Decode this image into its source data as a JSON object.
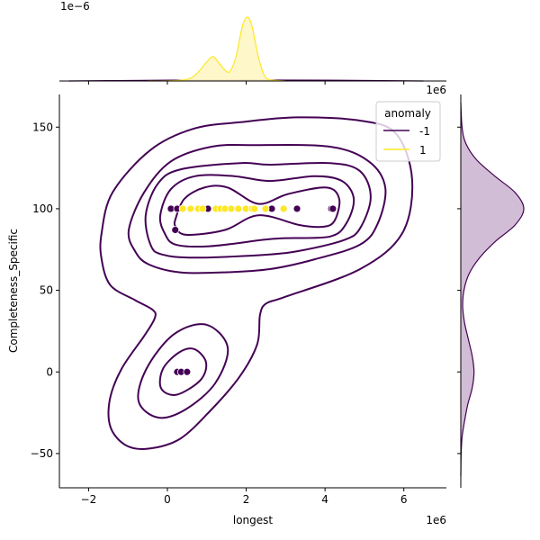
{
  "chart_data": {
    "type": "scatter",
    "subtype": "jointplot with kde contours and marginal kde",
    "xlabel": "longest",
    "ylabel": "Completeness_Specific",
    "x_offset_label": "1e6",
    "top_marginal_offset_label": "1e−6",
    "xlim": [
      -2.74,
      7.08
    ],
    "ylim": [
      -71,
      170
    ],
    "x_ticks": [
      -2,
      0,
      2,
      4,
      6
    ],
    "x_tick_labels": [
      "−2",
      "0",
      "2",
      "4",
      "6"
    ],
    "y_ticks": [
      -50,
      0,
      50,
      100,
      150
    ],
    "y_tick_labels": [
      "−50",
      "0",
      "50",
      "100",
      "150"
    ],
    "grid": false,
    "legend": {
      "title": "anomaly",
      "placement": "top-right",
      "entries": [
        {
          "label": "-1",
          "color": "#440154"
        },
        {
          "label": "1",
          "color": "#fde725"
        }
      ]
    },
    "colors": {
      "anomaly_-1": "#440154",
      "anomaly_1": "#fde725"
    },
    "series": [
      {
        "name": "-1",
        "points": [
          [
            0.09,
            100
          ],
          [
            0.25,
            100
          ],
          [
            0.59,
            100
          ],
          [
            1.03,
            100
          ],
          [
            2.65,
            100
          ],
          [
            2.95,
            100
          ],
          [
            3.29,
            100
          ],
          [
            4.16,
            100
          ],
          [
            4.2,
            100
          ],
          [
            0.2,
            87
          ],
          [
            0.25,
            0
          ],
          [
            0.35,
            0
          ],
          [
            0.5,
            0
          ]
        ]
      },
      {
        "name": "1",
        "points": [
          [
            0.39,
            100
          ],
          [
            0.59,
            100
          ],
          [
            0.78,
            100
          ],
          [
            0.89,
            100
          ],
          [
            1.23,
            100
          ],
          [
            1.35,
            100
          ],
          [
            1.46,
            100
          ],
          [
            1.62,
            100
          ],
          [
            1.8,
            100
          ],
          [
            1.99,
            100
          ],
          [
            2.15,
            100
          ],
          [
            2.21,
            100
          ],
          [
            2.49,
            100
          ],
          [
            2.95,
            100
          ]
        ]
      }
    ],
    "kde_contours_anomaly_-1": [
      [
        [
          -1.67,
          85
        ],
        [
          -1.39,
          110
        ],
        [
          -0.43,
          136
        ],
        [
          0.66,
          149
        ],
        [
          1.85,
          153
        ],
        [
          3.29,
          156
        ],
        [
          4.89,
          154
        ],
        [
          5.8,
          146
        ],
        [
          6.21,
          118
        ],
        [
          5.96,
          85
        ],
        [
          4.89,
          63
        ],
        [
          2.99,
          46
        ],
        [
          2.51,
          42
        ],
        [
          2.35,
          35
        ],
        [
          2.28,
          17
        ],
        [
          1.83,
          -3
        ],
        [
          1.12,
          -23
        ],
        [
          0.32,
          -41
        ],
        [
          -0.48,
          -47
        ],
        [
          -1.05,
          -45
        ],
        [
          -1.44,
          -34
        ],
        [
          -1.46,
          -17
        ],
        [
          -1.16,
          2
        ],
        [
          -0.59,
          22
        ],
        [
          -0.32,
          33
        ],
        [
          -0.37,
          38
        ],
        [
          -0.82,
          44
        ],
        [
          -1.44,
          53
        ],
        [
          -1.67,
          69
        ]
      ],
      [
        [
          -0.98,
          87
        ],
        [
          -0.59,
          110
        ],
        [
          0.09,
          129
        ],
        [
          1.12,
          138
        ],
        [
          2.21,
          139
        ],
        [
          4.13,
          138
        ],
        [
          5.11,
          129
        ],
        [
          5.53,
          113
        ],
        [
          5.34,
          91
        ],
        [
          4.89,
          78
        ],
        [
          3.74,
          69
        ],
        [
          2.6,
          63
        ],
        [
          1.46,
          61
        ],
        [
          0.32,
          61
        ],
        [
          -0.48,
          66
        ],
        [
          -0.82,
          74
        ]
      ],
      [
        [
          -0.55,
          96
        ],
        [
          -0.25,
          115
        ],
        [
          0.32,
          124
        ],
        [
          1.85,
          128
        ],
        [
          2.6,
          127
        ],
        [
          4.13,
          128
        ],
        [
          4.89,
          123
        ],
        [
          5.16,
          107
        ],
        [
          4.89,
          88
        ],
        [
          4.5,
          81
        ],
        [
          3.52,
          75
        ],
        [
          2.6,
          72
        ],
        [
          0.71,
          70
        ],
        [
          -0.14,
          72
        ],
        [
          -0.43,
          78
        ]
      ],
      [
        [
          -0.18,
          96
        ],
        [
          0.09,
          112
        ],
        [
          0.71,
          120
        ],
        [
          1.69,
          120
        ],
        [
          2.6,
          117
        ],
        [
          3.74,
          120
        ],
        [
          4.43,
          117
        ],
        [
          4.73,
          106
        ],
        [
          4.54,
          91
        ],
        [
          4.13,
          83
        ],
        [
          2.99,
          82
        ],
        [
          2.44,
          81
        ],
        [
          1.07,
          77
        ],
        [
          0.21,
          78
        ],
        [
          -0.07,
          85
        ]
      ],
      [
        [
          0.21,
          94
        ],
        [
          0.43,
          106
        ],
        [
          0.94,
          113
        ],
        [
          1.53,
          113
        ],
        [
          2.31,
          103
        ],
        [
          3.06,
          109
        ],
        [
          4.04,
          113
        ],
        [
          4.36,
          106
        ],
        [
          4.25,
          93
        ],
        [
          3.97,
          89
        ],
        [
          3.36,
          90
        ],
        [
          2.31,
          96
        ],
        [
          1.46,
          87
        ],
        [
          0.48,
          84
        ],
        [
          0.21,
          89
        ]
      ],
      [
        [
          0.98,
          29
        ],
        [
          1.53,
          15
        ],
        [
          1.21,
          -7
        ],
        [
          0.46,
          -23
        ],
        [
          -0.23,
          -28
        ],
        [
          -0.73,
          -18
        ],
        [
          -0.53,
          2
        ],
        [
          0.16,
          23
        ]
      ],
      [
        [
          0.68,
          14
        ],
        [
          0.98,
          6
        ],
        [
          0.84,
          -5
        ],
        [
          0.23,
          -14
        ],
        [
          -0.16,
          -10
        ],
        [
          -0.11,
          2
        ],
        [
          0.3,
          12
        ]
      ]
    ],
    "marginal_x_density_relative": {
      "1": [
        [
          -0.5,
          0
        ],
        [
          0.3,
          0.01
        ],
        [
          0.6,
          0.05
        ],
        [
          0.8,
          0.15
        ],
        [
          1.0,
          0.3
        ],
        [
          1.16,
          0.38
        ],
        [
          1.35,
          0.25
        ],
        [
          1.5,
          0.15
        ],
        [
          1.6,
          0.16
        ],
        [
          1.75,
          0.4
        ],
        [
          1.9,
          0.85
        ],
        [
          2.03,
          1.0
        ],
        [
          2.15,
          0.85
        ],
        [
          2.3,
          0.4
        ],
        [
          2.45,
          0.1
        ],
        [
          2.6,
          0.02
        ],
        [
          3.0,
          0
        ]
      ],
      "-1": [
        [
          -2.5,
          0
        ],
        [
          -1.5,
          0.005
        ],
        [
          0,
          0.012
        ],
        [
          2,
          0.015
        ],
        [
          4,
          0.012
        ],
        [
          5.5,
          0.005
        ],
        [
          6.5,
          0
        ]
      ]
    },
    "marginal_y_density_relative": {
      "-1": [
        [
          165,
          0
        ],
        [
          150,
          0.02
        ],
        [
          140,
          0.08
        ],
        [
          130,
          0.25
        ],
        [
          120,
          0.54
        ],
        [
          110,
          0.86
        ],
        [
          100,
          1
        ],
        [
          90,
          0.86
        ],
        [
          80,
          0.55
        ],
        [
          70,
          0.3
        ],
        [
          60,
          0.13
        ],
        [
          50,
          0.05
        ],
        [
          40,
          0.03
        ],
        [
          30,
          0.06
        ],
        [
          20,
          0.12
        ],
        [
          10,
          0.18
        ],
        [
          0,
          0.21
        ],
        [
          -10,
          0.18
        ],
        [
          -20,
          0.11
        ],
        [
          -30,
          0.06
        ],
        [
          -40,
          0.02
        ],
        [
          -50,
          0.005
        ],
        [
          -64,
          0
        ]
      ]
    }
  }
}
